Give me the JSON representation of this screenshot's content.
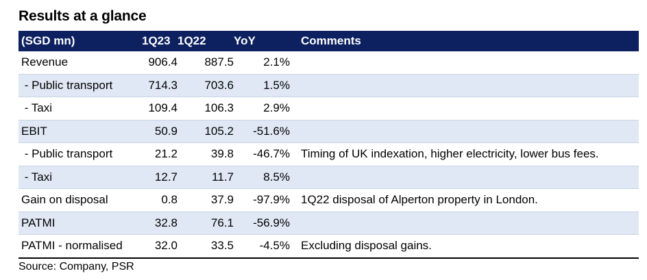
{
  "title": "Results at a glance",
  "table": {
    "headers": [
      "(SGD mn)",
      "1Q23",
      "1Q22",
      "YoY",
      "Comments"
    ],
    "rows": [
      {
        "label": "Revenue",
        "q123": "906.4",
        "q122": "887.5",
        "yoy": "2.1%",
        "comment": "",
        "shaded": false
      },
      {
        "label": " - Public transport",
        "q123": "714.3",
        "q122": "703.6",
        "yoy": "1.5%",
        "comment": "",
        "shaded": true
      },
      {
        "label": " - Taxi",
        "q123": "109.4",
        "q122": "106.3",
        "yoy": "2.9%",
        "comment": "",
        "shaded": false
      },
      {
        "label": "EBIT",
        "q123": "50.9",
        "q122": "105.2",
        "yoy": "-51.6%",
        "comment": "",
        "shaded": true
      },
      {
        "label": " - Public transport",
        "q123": "21.2",
        "q122": "39.8",
        "yoy": "-46.7%",
        "comment": "Timing of UK indexation, higher electricity, lower bus fees.",
        "shaded": false
      },
      {
        "label": " - Taxi",
        "q123": "12.7",
        "q122": "11.7",
        "yoy": "8.5%",
        "comment": "",
        "shaded": true
      },
      {
        "label": "Gain on disposal",
        "q123": "0.8",
        "q122": "37.9",
        "yoy": "-97.9%",
        "comment": "1Q22 disposal of Alperton property in London.",
        "shaded": false
      },
      {
        "label": "PATMI",
        "q123": "32.8",
        "q122": "76.1",
        "yoy": "-56.9%",
        "comment": "",
        "shaded": true
      },
      {
        "label": "PATMI - normalised",
        "q123": "32.0",
        "q122": "33.5",
        "yoy": "-4.5%",
        "comment": "Excluding disposal gains.",
        "shaded": false
      }
    ]
  },
  "source": "Source: Company, PSR",
  "colors": {
    "header_bg": "#0d2060",
    "header_text": "#ffffff",
    "row_shade": "#dfe8f4"
  }
}
